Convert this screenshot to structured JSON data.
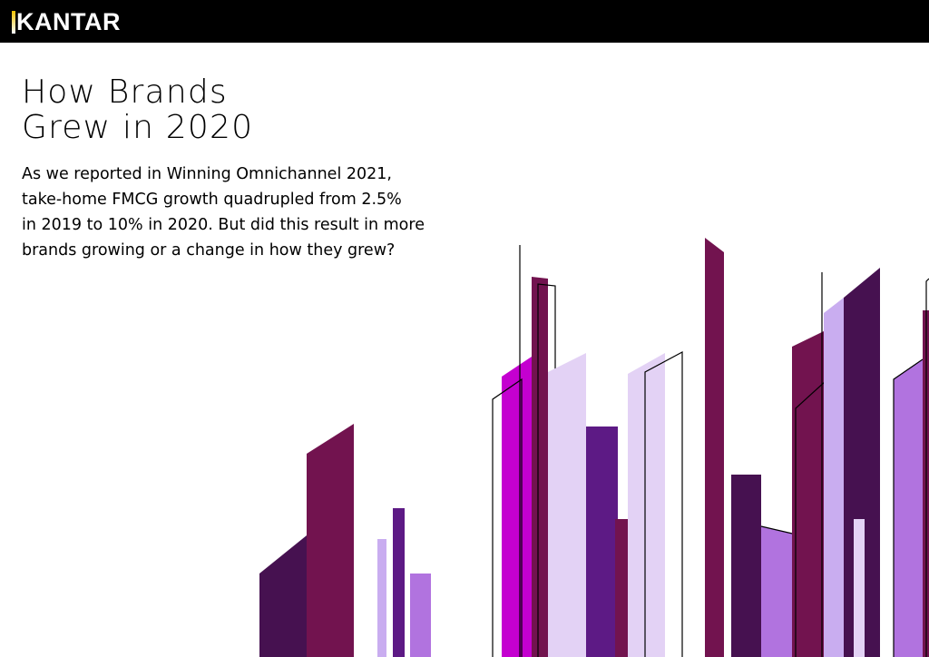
{
  "header": {
    "brand": "KANTAR",
    "colors": {
      "bar": "#000000",
      "logo_accent": "#f3c200"
    }
  },
  "hero": {
    "title_lines": [
      "How Brands",
      "Grew in 2020"
    ],
    "body_lines": [
      "As we reported in Winning Omnichannel 2021,",
      "take-home FMCG growth quadrupled from 2.5%",
      "in 2019 to 10% in 2020. But did this result in more",
      "brands growing or a change in how they grew?"
    ]
  },
  "illustration": {
    "icon": "abstract-skyline-bars",
    "palette": [
      "#461150",
      "#72134f",
      "#c400d0",
      "#5d1a85",
      "#b173df",
      "#c9adf0",
      "#e3d2f5"
    ]
  }
}
